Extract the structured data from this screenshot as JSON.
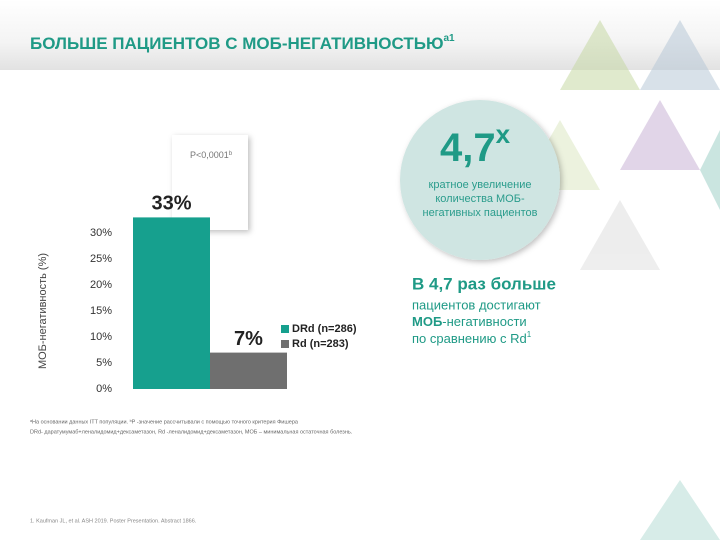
{
  "title": {
    "text": "БОЛЬШЕ ПАЦИЕНТОВ С МОБ-НЕГАТИВНОСТЬЮ",
    "superscript": "a1"
  },
  "chart_data": {
    "type": "bar",
    "y_axis_title": "МОБ-негативность (%)",
    "categories": [
      null
    ],
    "series": [
      {
        "name": "DRd (n=286)",
        "color": "#16a08e",
        "values": [
          33
        ],
        "value_labels": [
          "33%"
        ]
      },
      {
        "name": "Rd (n=283)",
        "color": "#6f6f6f",
        "values": [
          7
        ],
        "value_labels": [
          "7%"
        ]
      }
    ],
    "ylim": [
      0,
      30
    ],
    "yticks": [
      {
        "value": 0,
        "label": "0%"
      },
      {
        "value": 5,
        "label": "5%"
      },
      {
        "value": 10,
        "label": "10%"
      },
      {
        "value": 15,
        "label": "15%"
      },
      {
        "value": 20,
        "label": "20%"
      },
      {
        "value": 25,
        "label": "25%"
      },
      {
        "value": 30,
        "label": "30%"
      }
    ],
    "annotation": {
      "text": "P<0,0001",
      "superscript": "b"
    },
    "legend": "right"
  },
  "callout": {
    "value": "4,7",
    "superscript": "x",
    "lines": [
      "кратное увеличение",
      "количества МОБ-",
      "негативных пациентов"
    ]
  },
  "summary": {
    "heading": "В 4,7 раз больше",
    "line1": "пациентов достигают",
    "line2_bold": "МОБ",
    "line2": "-негативности",
    "line3": "по сравнению с Rd",
    "line3_superscript": "1"
  },
  "footnotes": [
    "ᵃНа основании данных ITT популяции. ᵇP -значение рассчитывали с помощью точного критерия Фишера",
    "DRd- даратумумаб+леналидомид+дексаметазон, Rd -леналидомид+дексаметазон, МОБ – минимальная остаточная болезнь."
  ],
  "reference": "1. Kaufman JL, et al. ASH 2019. Poster Presentation. Abstract 1866."
}
